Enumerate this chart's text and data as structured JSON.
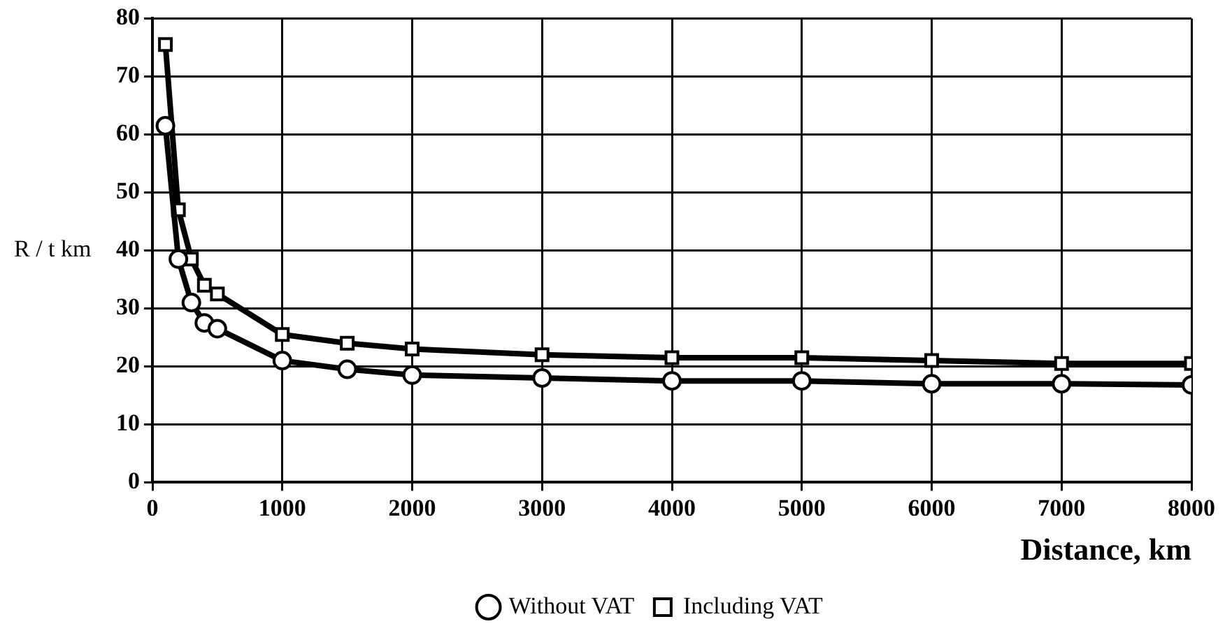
{
  "chart_data": {
    "type": "line",
    "xlabel": "Distance, km",
    "ylabel": "R / t km",
    "x": [
      100,
      200,
      300,
      400,
      500,
      1000,
      1500,
      2000,
      3000,
      4000,
      5000,
      6000,
      7000,
      8000
    ],
    "series": [
      {
        "name": "Without VAT",
        "color": "#000000",
        "marker": "circle",
        "values": [
          61.5,
          38.5,
          31,
          27.5,
          26.5,
          21,
          19.5,
          18.5,
          18,
          17.5,
          17.5,
          17,
          17,
          16.8
        ]
      },
      {
        "name": "Including VAT",
        "color": "#000000",
        "marker": "square",
        "values": [
          75.5,
          47,
          38.5,
          34,
          32.5,
          25.5,
          24,
          23,
          22,
          21.5,
          21.5,
          21,
          20.5,
          20.5
        ]
      }
    ],
    "xlim": [
      0,
      8000
    ],
    "xticks": [
      0,
      1000,
      2000,
      3000,
      4000,
      5000,
      6000,
      7000,
      8000
    ],
    "ylim": [
      0,
      80
    ],
    "yticks": [
      0,
      10,
      20,
      30,
      40,
      50,
      60,
      70,
      80
    ],
    "grid": true,
    "legend": "bottom",
    "line_style": "solid"
  }
}
